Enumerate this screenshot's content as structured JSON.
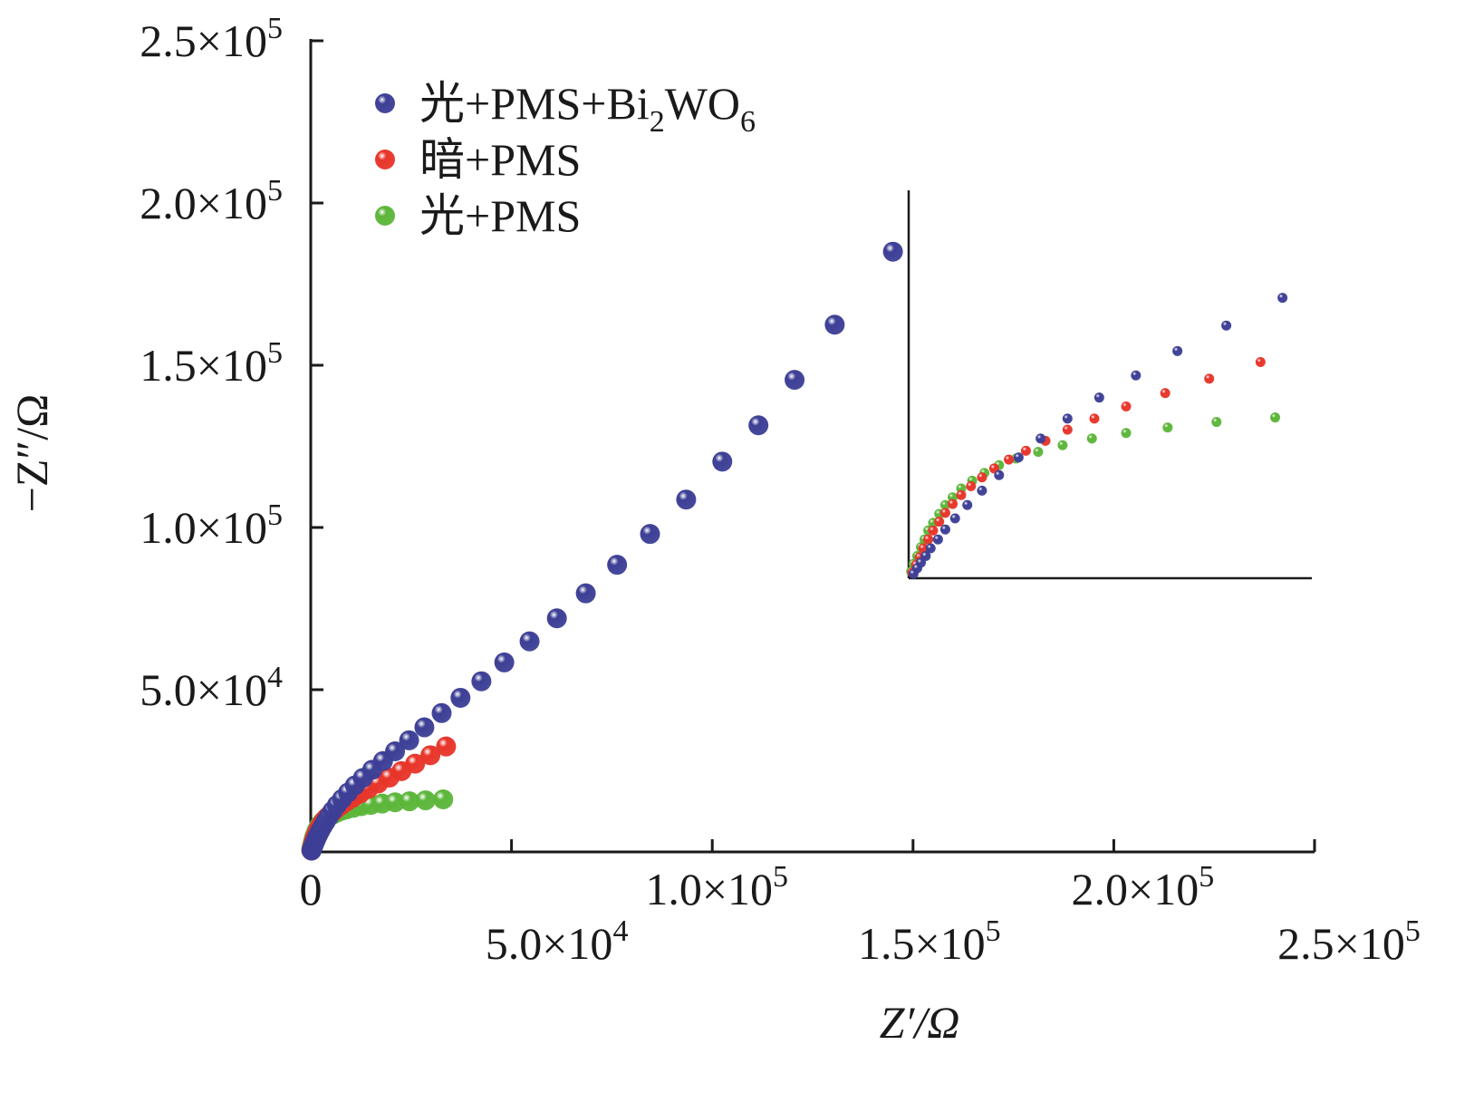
{
  "chart_data": {
    "type": "scatter",
    "xlabel": "Z′/Ω",
    "ylabel": "−Z″/Ω",
    "xlim": [
      0,
      250000
    ],
    "ylim": [
      0,
      250000
    ],
    "x_ticks": [
      {
        "value": 0,
        "mantissa": "0",
        "exp": ""
      },
      {
        "value": 50000,
        "mantissa": "5.0",
        "exp": "4"
      },
      {
        "value": 100000,
        "mantissa": "1.0",
        "exp": "5"
      },
      {
        "value": 150000,
        "mantissa": "1.5",
        "exp": "5"
      },
      {
        "value": 200000,
        "mantissa": "2.0",
        "exp": "5"
      },
      {
        "value": 250000,
        "mantissa": "2.5",
        "exp": "5"
      }
    ],
    "y_ticks": [
      {
        "value": 50000,
        "mantissa": "5.0",
        "exp": "4"
      },
      {
        "value": 100000,
        "mantissa": "1.0",
        "exp": "5"
      },
      {
        "value": 150000,
        "mantissa": "1.5",
        "exp": "5"
      },
      {
        "value": 200000,
        "mantissa": "2.0",
        "exp": "5"
      },
      {
        "value": 250000,
        "mantissa": "2.5",
        "exp": "5"
      }
    ],
    "times_sign": "×",
    "tick_base": "10",
    "legend_position": "top-left",
    "series": [
      {
        "name": "光+PMS+Bi2WO6",
        "name_parts": {
          "main": "光+PMS+Bi",
          "sub1": "2",
          "mid": "WO",
          "sub2": "6"
        },
        "color": "#3d3f96",
        "x": [
          200,
          350,
          500,
          700,
          900,
          1200,
          1500,
          1900,
          2400,
          3000,
          3700,
          4500,
          5400,
          6500,
          7800,
          9300,
          11000,
          13000,
          15300,
          18000,
          21000,
          24500,
          28300,
          32600,
          37300,
          42500,
          48200,
          54500,
          61300,
          68500,
          76300,
          84500,
          93500,
          102500,
          111500,
          120500,
          130500,
          145000
        ],
        "y": [
          400,
          900,
          1400,
          2000,
          2700,
          3500,
          4400,
          5400,
          6600,
          7900,
          9300,
          10900,
          12600,
          14400,
          16300,
          18300,
          20500,
          22800,
          25300,
          28000,
          31000,
          34400,
          38400,
          42800,
          47500,
          52600,
          58400,
          64900,
          72000,
          79700,
          88500,
          98000,
          108600,
          120300,
          131500,
          145500,
          162500,
          185000
        ]
      },
      {
        "name": "暗+PMS",
        "color": "#e8352a",
        "x": [
          150,
          300,
          450,
          600,
          800,
          1000,
          1250,
          1500,
          1800,
          2150,
          2550,
          3000,
          3500,
          4100,
          4800,
          5600,
          6500,
          7600,
          8900,
          10500,
          12300,
          14400,
          16800,
          19600,
          22600,
          26000,
          29800,
          33700
        ],
        "y": [
          500,
          1200,
          1900,
          2700,
          3500,
          4300,
          5100,
          5900,
          6700,
          7500,
          8300,
          9100,
          9900,
          10700,
          11500,
          12400,
          13400,
          14400,
          15500,
          16700,
          18000,
          19500,
          21100,
          22900,
          24900,
          27200,
          29800,
          32500
        ]
      },
      {
        "name": "光+PMS",
        "color": "#5cb63a",
        "x": [
          100,
          200,
          350,
          500,
          650,
          800,
          1000,
          1250,
          1500,
          1800,
          2150,
          2600,
          3100,
          3700,
          4400,
          5300,
          6300,
          7500,
          8900,
          10600,
          12600,
          15000,
          17800,
          21000,
          24600,
          28600,
          33000
        ],
        "y": [
          600,
          1300,
          2000,
          2800,
          3500,
          4300,
          5000,
          5800,
          6600,
          7300,
          8100,
          8800,
          9500,
          10200,
          10800,
          11400,
          12000,
          12600,
          13100,
          13600,
          14100,
          14500,
          14900,
          15300,
          15600,
          15900,
          16200
        ]
      }
    ]
  }
}
